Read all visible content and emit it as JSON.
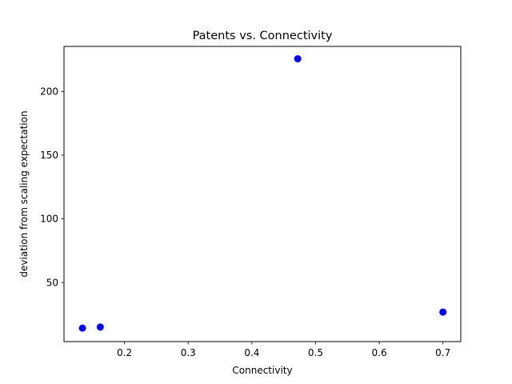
{
  "chart_data": {
    "type": "scatter",
    "title": "Patents vs. Connectivity",
    "xlabel": "Connectivity",
    "ylabel": "deviation from scaling expectation",
    "xlim": [
      0.105,
      0.728
    ],
    "ylim": [
      3.6,
      235.4
    ],
    "xticks": [
      0.2,
      0.3,
      0.4,
      0.5,
      0.6,
      0.7
    ],
    "xtick_labels": [
      "0.2",
      "0.3",
      "0.4",
      "0.5",
      "0.6",
      "0.7"
    ],
    "yticks": [
      50,
      100,
      150,
      200
    ],
    "ytick_labels": [
      "50",
      "100",
      "150",
      "200"
    ],
    "grid": false,
    "legend": null,
    "marker_color": "#0000ff",
    "points": [
      {
        "x": 0.134,
        "y": 14.2
      },
      {
        "x": 0.162,
        "y": 15.0
      },
      {
        "x": 0.472,
        "y": 225.7
      },
      {
        "x": 0.7,
        "y": 26.8
      }
    ]
  }
}
